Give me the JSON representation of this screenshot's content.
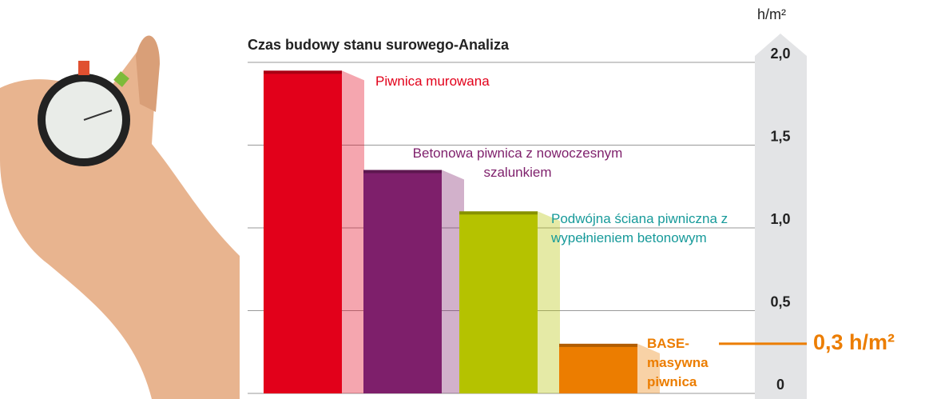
{
  "chart_data": {
    "type": "bar3d",
    "title": "Czas budowy stanu surowego-Analiza",
    "y_label": "h/m²",
    "categories": [
      "Piwnica murowana",
      "Betonowa piwnica z nowoczesnym szalunkiem",
      "Podwójna ściana piwniczna z wypełnieniem betonowym",
      "BASE-masywna piwnica"
    ],
    "values": [
      1.95,
      1.35,
      1.1,
      0.3
    ],
    "value_labels": [
      null,
      null,
      null,
      "0,3 h/m²"
    ],
    "colors": [
      "#e2001a",
      "#7e1f6b",
      "#b5c200",
      "#ec7d00"
    ],
    "ylim": [
      0,
      2.0
    ],
    "yticks": [
      0,
      {
        "value": 0.5,
        "label": "0,5"
      },
      {
        "value": 1.0,
        "label": "1,0"
      },
      {
        "value": 1.5,
        "label": "1,5"
      },
      {
        "value": 2.0,
        "label": "2,0"
      }
    ],
    "grid": true
  }
}
